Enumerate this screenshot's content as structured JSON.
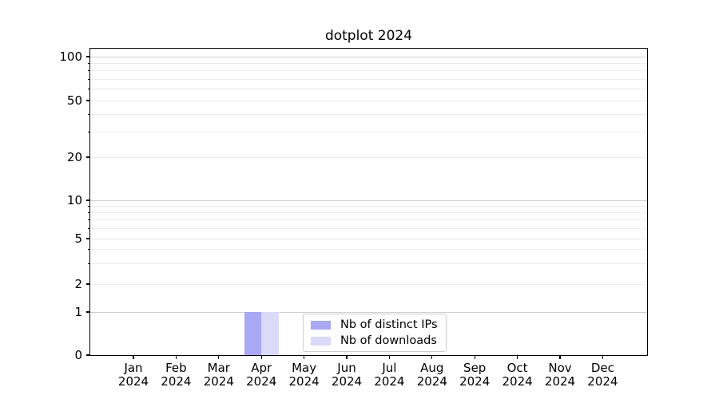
{
  "chart_data": {
    "type": "bar",
    "title": "dotplot 2024",
    "yscale": "symlog (log above 1, linear 0-1)",
    "ylim": [
      0,
      115
    ],
    "grid": "horizontal major+minor log gridlines",
    "legend_position": "inside, lower center",
    "categories": [
      "Jan 2024",
      "Feb 2024",
      "Mar 2024",
      "Apr 2024",
      "May 2024",
      "Jun 2024",
      "Jul 2024",
      "Aug 2024",
      "Sep 2024",
      "Oct 2024",
      "Nov 2024",
      "Dec 2024"
    ],
    "y_ticks": [
      100,
      50,
      20,
      10,
      5,
      2,
      1,
      0
    ],
    "y_minor_ticks": [
      3,
      4,
      6,
      7,
      8,
      9,
      30,
      40,
      60,
      70,
      80,
      90
    ],
    "series": [
      {
        "name": "Nb of distinct IPs",
        "color": "#a8a8f3",
        "values": [
          0,
          0,
          0,
          1,
          0,
          0,
          0,
          0,
          0,
          0,
          0,
          0
        ]
      },
      {
        "name": "Nb of downloads",
        "color": "#dadaf9",
        "values": [
          0,
          0,
          0,
          1,
          0,
          0,
          0,
          0,
          0,
          0,
          0,
          0
        ]
      }
    ]
  },
  "colors": {
    "background": "#ffffff",
    "spine": "#000000",
    "grid_minor": "#ececec",
    "grid_major": "#cfcfcf",
    "tick_text": "#000000"
  }
}
